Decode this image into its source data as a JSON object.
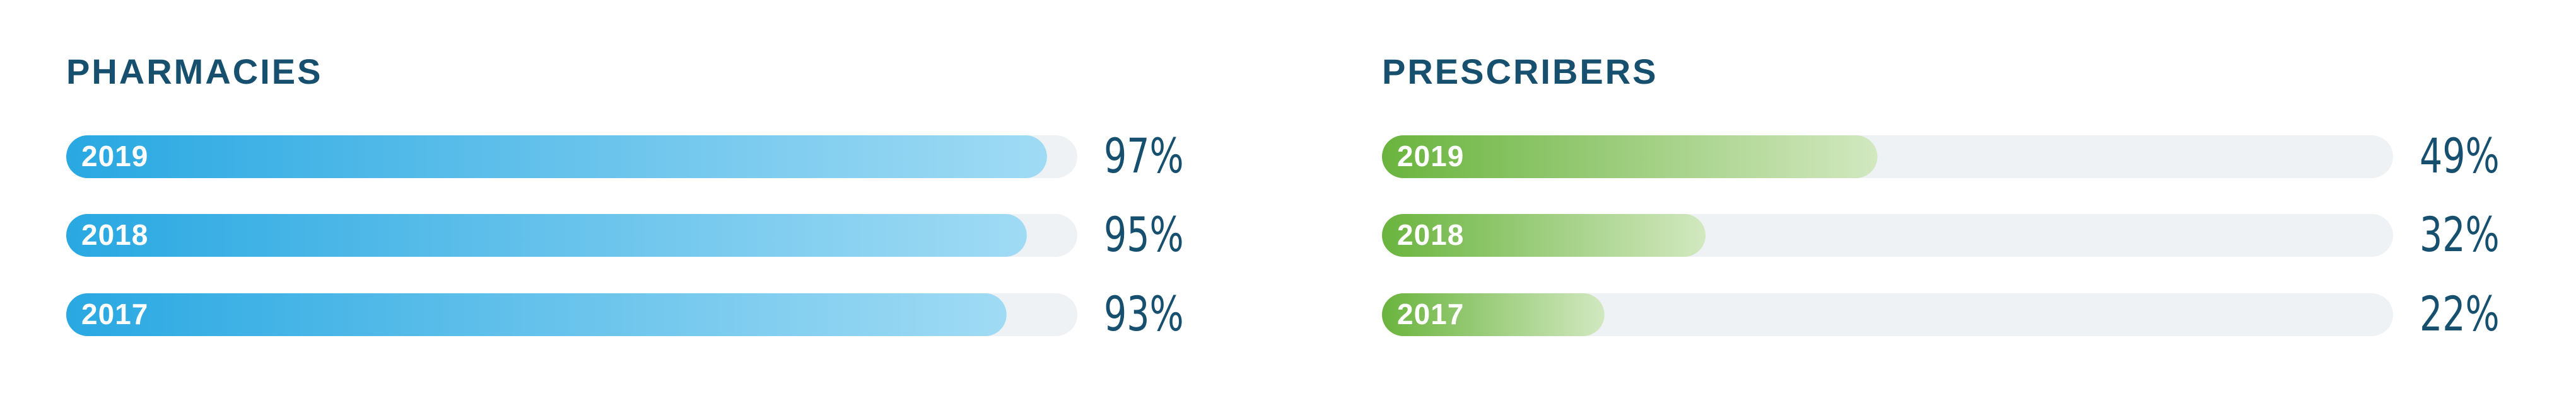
{
  "chart_data": [
    {
      "type": "bar",
      "orientation": "horizontal",
      "title": "PHARMACIES",
      "categories": [
        "2019",
        "2018",
        "2017"
      ],
      "values": [
        97,
        95,
        93
      ],
      "value_labels": [
        "97%",
        "95%",
        "93%"
      ],
      "xlim": [
        0,
        100
      ],
      "color": {
        "start": "#29a8e2",
        "end": "#a0dbf4"
      },
      "track_color": "#eef2f5"
    },
    {
      "type": "bar",
      "orientation": "horizontal",
      "title": "PRESCRIBERS",
      "categories": [
        "2019",
        "2018",
        "2017"
      ],
      "values": [
        49,
        32,
        22
      ],
      "value_labels": [
        "49%",
        "32%",
        "22%"
      ],
      "xlim": [
        0,
        100
      ],
      "color": {
        "start": "#6ab43e",
        "end": "#d2e8c0"
      },
      "track_color": "#eef2f5"
    }
  ]
}
